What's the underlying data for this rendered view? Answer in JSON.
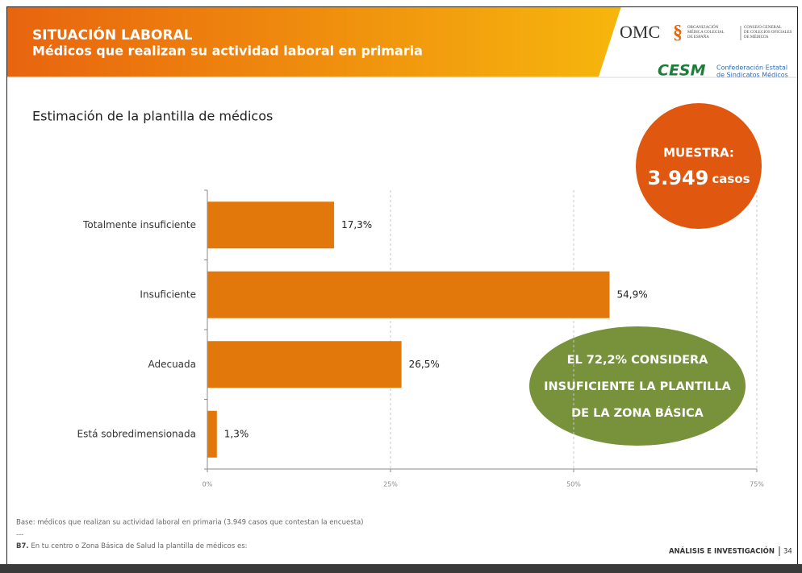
{
  "header": {
    "title": "SITUACIÓN LABORAL",
    "subtitle": "Médicos que realizan su actividad laboral en primaria"
  },
  "logos": {
    "omc": "OMC",
    "omc_symbol": "§",
    "omc_lines_1": [
      "ORGANIZACIÓN",
      "MÉDICA COLEGIAL",
      "DE ESPAÑA"
    ],
    "omc_lines_2": [
      "CONSEJO GENERAL",
      "DE COLEGIOS OFICIALES",
      "DE MÉDICOS"
    ],
    "cesm": "CESM",
    "cesm_lines": [
      "Confederación Estatal",
      "de Sindicatos Médicos"
    ]
  },
  "chart_data": {
    "type": "bar",
    "orientation": "horizontal",
    "title": "Estimación de la plantilla de médicos",
    "categories": [
      "Totalmente insuficiente",
      "Insuficiente",
      "Adecuada",
      "Está sobredimensionada"
    ],
    "values": [
      17.3,
      54.9,
      26.5,
      1.3
    ],
    "value_labels": [
      "17,3%",
      "54,9%",
      "26,5%",
      "1,3%"
    ],
    "color": "#e2780c",
    "xlim": [
      0,
      75
    ],
    "xticks": [
      {
        "value": 0,
        "label": "0%"
      },
      {
        "value": 25,
        "label": "25%"
      },
      {
        "value": 50,
        "label": "50%"
      },
      {
        "value": 75,
        "label": "75%"
      }
    ],
    "grid": true
  },
  "sample": {
    "label": "MUESTRA:",
    "value": "3.949",
    "unit": "casos"
  },
  "highlight": [
    "EL 72,2% CONSIDERA",
    "INSUFICIENTE LA PLANTILLA",
    "DE LA ZONA BÁSICA"
  ],
  "footer": {
    "base": "Base: médicos que realizan su actividad laboral en primaria (3.949 casos que contestan la encuesta)",
    "separator": "---",
    "question_code": "B7.",
    "question": " En tu centro o Zona Básica de Salud la plantilla de médicos es:",
    "section": "ANÁLISIS E INVESTIGACIÓN",
    "page": "34"
  }
}
